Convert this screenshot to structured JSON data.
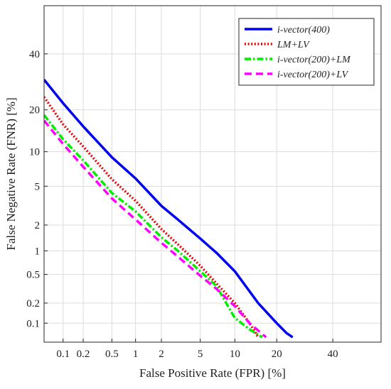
{
  "chart_data": {
    "type": "line",
    "title": "",
    "xlabel": "False Positive Rate (FPR) [%]",
    "ylabel": "False Negative Rate (FNR) [%]",
    "xscale": "probit",
    "yscale": "probit",
    "xlim": [
      0.05,
      60
    ],
    "ylim": [
      0.05,
      60
    ],
    "grid": true,
    "legend_position": "top-right",
    "xticks": [
      {
        "value": 0.1,
        "label": "0.1"
      },
      {
        "value": 0.2,
        "label": "0.2"
      },
      {
        "value": 0.5,
        "label": "0.5"
      },
      {
        "value": 1,
        "label": "1"
      },
      {
        "value": 2,
        "label": "2"
      },
      {
        "value": 5,
        "label": "5"
      },
      {
        "value": 10,
        "label": "10"
      },
      {
        "value": 20,
        "label": "20"
      },
      {
        "value": 40,
        "label": "40"
      }
    ],
    "yticks": [
      {
        "value": 0.1,
        "label": "0.1"
      },
      {
        "value": 0.2,
        "label": "0.2"
      },
      {
        "value": 0.5,
        "label": "0.5"
      },
      {
        "value": 1,
        "label": "1"
      },
      {
        "value": 2,
        "label": "2"
      },
      {
        "value": 5,
        "label": "5"
      },
      {
        "value": 10,
        "label": "10"
      },
      {
        "value": 20,
        "label": "20"
      },
      {
        "value": 40,
        "label": "40"
      }
    ],
    "series": [
      {
        "name": "i-vector(400)",
        "color": "#0000ee",
        "dash": "solid",
        "points": [
          [
            0.05,
            30
          ],
          [
            0.1,
            22
          ],
          [
            0.2,
            15.5
          ],
          [
            0.5,
            9
          ],
          [
            1,
            5.9
          ],
          [
            2,
            3.2
          ],
          [
            3,
            2.3
          ],
          [
            5,
            1.4
          ],
          [
            7,
            0.95
          ],
          [
            10,
            0.55
          ],
          [
            15,
            0.2
          ],
          [
            20,
            0.1
          ],
          [
            23,
            0.07
          ],
          [
            25,
            0.06
          ]
        ]
      },
      {
        "name": "LM+LV",
        "color": "#ee0000",
        "dash": "dotted",
        "points": [
          [
            0.05,
            24
          ],
          [
            0.1,
            16
          ],
          [
            0.2,
            11
          ],
          [
            0.5,
            5.8
          ],
          [
            1,
            3.6
          ],
          [
            2,
            1.8
          ],
          [
            3,
            1.2
          ],
          [
            5,
            0.65
          ],
          [
            7,
            0.38
          ],
          [
            10,
            0.2
          ],
          [
            13,
            0.1
          ],
          [
            15,
            0.06
          ]
        ]
      },
      {
        "name": "i-vector(200)+LM",
        "color": "#00ee00",
        "dash": "dashdot",
        "points": [
          [
            0.05,
            18.5
          ],
          [
            0.1,
            12.5
          ],
          [
            0.2,
            8.5
          ],
          [
            0.5,
            4.3
          ],
          [
            1,
            2.8
          ],
          [
            2,
            1.45
          ],
          [
            3,
            1
          ],
          [
            5,
            0.55
          ],
          [
            7,
            0.35
          ],
          [
            10,
            0.12
          ],
          [
            13,
            0.08
          ],
          [
            16,
            0.06
          ]
        ]
      },
      {
        "name": "i-vector(200)+LV",
        "color": "#ff00ff",
        "dash": "dashed",
        "points": [
          [
            0.05,
            17
          ],
          [
            0.1,
            11.5
          ],
          [
            0.2,
            7.5
          ],
          [
            0.5,
            3.8
          ],
          [
            1,
            2.3
          ],
          [
            2,
            1.25
          ],
          [
            3,
            0.85
          ],
          [
            5,
            0.48
          ],
          [
            7,
            0.32
          ],
          [
            10,
            0.18
          ],
          [
            13,
            0.1
          ],
          [
            17,
            0.06
          ]
        ]
      }
    ]
  }
}
